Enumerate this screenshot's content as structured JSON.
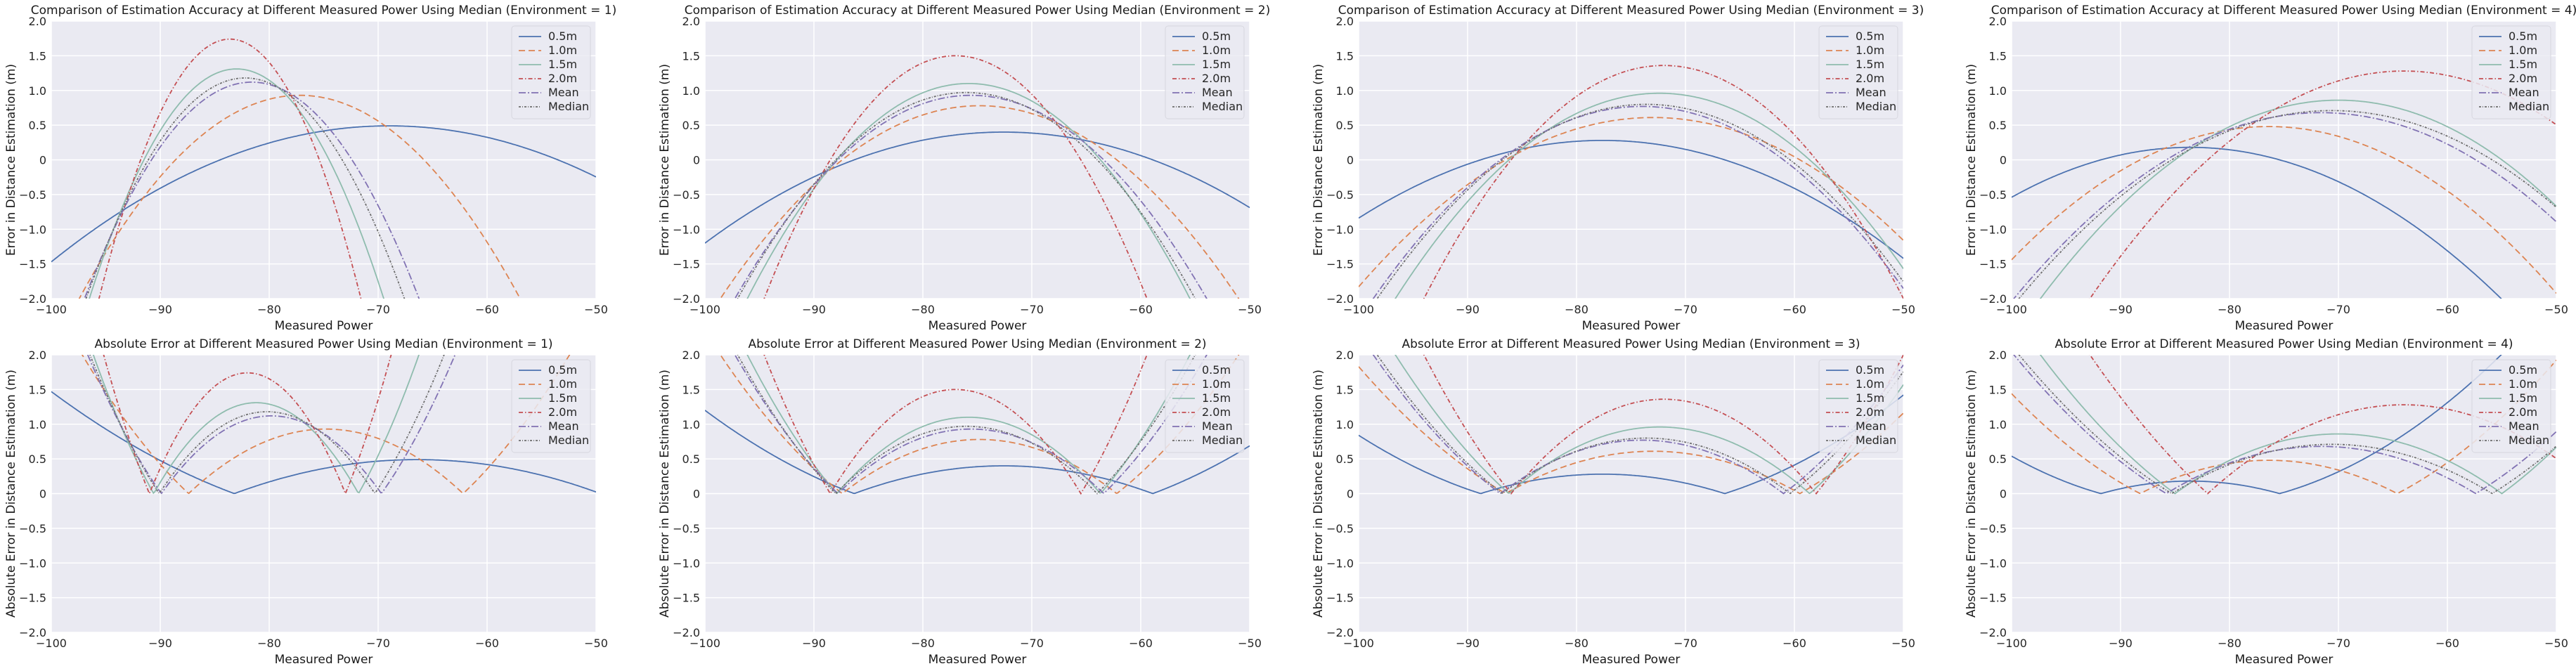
{
  "figure": {
    "series_styles": [
      {
        "name": "0.5m",
        "color": "#4c72b0",
        "dash": ""
      },
      {
        "name": "1.0m",
        "color": "#dd8452",
        "dash": "9,5"
      },
      {
        "name": "1.5m",
        "color": "#8fbcae",
        "dash": ""
      },
      {
        "name": "2.0m",
        "color": "#c44e52",
        "dash": "6,3,1.5,3"
      },
      {
        "name": "Mean",
        "color": "#8172b3",
        "dash": "10,3,2,3"
      },
      {
        "name": "Median",
        "color": "#6e6e6e",
        "dash": "3,2,1,2"
      }
    ]
  },
  "chart_data": [
    {
      "type": "line",
      "title": "Comparison of Estimation Accuracy at Different Measured Power Using Median (Environment = 1)",
      "xlabel": "Measured Power",
      "ylabel": "Error in Distance Estimation (m)",
      "xlim": [
        -100,
        -50
      ],
      "ylim": [
        -2,
        2
      ],
      "xticks": [
        "−100",
        "−90",
        "−80",
        "−70",
        "−60",
        "−50"
      ],
      "yticks": [
        "−2.0",
        "−1.5",
        "−1.0",
        "−0.5",
        "0",
        "0.5",
        "1.0",
        "1.5",
        "2.0"
      ],
      "grid": true,
      "legend": "top-right",
      "mode": "error",
      "series": [
        {
          "name": "0.5m",
          "x0": -84.5,
          "y_at_xmin": 0.49
        },
        {
          "name": "1.0m",
          "x0": -88.6,
          "y_at_xmin": 0.93
        },
        {
          "name": "1.5m",
          "x0": -91.5,
          "y_at_xmin": 1.31
        },
        {
          "name": "2.0m",
          "x0": -91.8,
          "y_at_xmin": 1.74
        },
        {
          "name": "Mean",
          "x0": -90.8,
          "y_at_xmin": 1.12
        },
        {
          "name": "Median",
          "x0": -91.1,
          "y_at_xmin": 1.18
        }
      ]
    },
    {
      "type": "line",
      "title": "Comparison of Estimation Accuracy at Different Measured Power Using Median (Environment = 2)",
      "xlabel": "Measured Power",
      "ylabel": "Error in Distance Estimation (m)",
      "xlim": [
        -100,
        -50
      ],
      "ylim": [
        -2,
        2
      ],
      "xticks": [
        "−100",
        "−90",
        "−80",
        "−70",
        "−60",
        "−50"
      ],
      "yticks": [
        "−2.0",
        "−1.5",
        "−1.0",
        "−0.5",
        "0",
        "0.5",
        "1.0",
        "1.5",
        "2.0"
      ],
      "grid": true,
      "legend": "top-right",
      "mode": "error",
      "series": [
        {
          "name": "0.5m",
          "x0": -86.3,
          "y_at_xmin": 0.4
        },
        {
          "name": "1.0m",
          "x0": -87.4,
          "y_at_xmin": 0.78
        },
        {
          "name": "1.5m",
          "x0": -87.9,
          "y_at_xmin": 1.1
        },
        {
          "name": "2.0m",
          "x0": -88.5,
          "y_at_xmin": 1.5
        },
        {
          "name": "Mean",
          "x0": -87.8,
          "y_at_xmin": 0.93
        },
        {
          "name": "Median",
          "x0": -88.0,
          "y_at_xmin": 0.97
        }
      ]
    },
    {
      "type": "line",
      "title": "Comparison of Estimation Accuracy at Different Measured Power Using Median (Environment = 3)",
      "xlabel": "Measured Power",
      "ylabel": "Error in Distance Estimation (m)",
      "xlim": [
        -100,
        -50
      ],
      "ylim": [
        -2,
        2
      ],
      "xticks": [
        "−100",
        "−90",
        "−80",
        "−70",
        "−60",
        "−50"
      ],
      "yticks": [
        "−2.0",
        "−1.5",
        "−1.0",
        "−0.5",
        "0",
        "0.5",
        "1.0",
        "1.5",
        "2.0"
      ],
      "grid": true,
      "legend": "top-right",
      "mode": "error",
      "series": [
        {
          "name": "0.5m",
          "x0": -88.8,
          "y_at_xmin": 0.28
        },
        {
          "name": "1.0m",
          "x0": -86.5,
          "y_at_xmin": 0.61
        },
        {
          "name": "1.5m",
          "x0": -86.2,
          "y_at_xmin": 0.96
        },
        {
          "name": "2.0m",
          "x0": -86.0,
          "y_at_xmin": 1.36
        },
        {
          "name": "Mean",
          "x0": -87.0,
          "y_at_xmin": 0.77
        },
        {
          "name": "Median",
          "x0": -86.8,
          "y_at_xmin": 0.8
        }
      ]
    },
    {
      "type": "line",
      "title": "Comparison of Estimation Accuracy at Different Measured Power Using Median (Environment = 4)",
      "xlabel": "Measured Power",
      "ylabel": "Error in Distance Estimation (m)",
      "xlim": [
        -100,
        -50
      ],
      "ylim": [
        -2,
        2
      ],
      "xticks": [
        "−100",
        "−90",
        "−80",
        "−70",
        "−60",
        "−50"
      ],
      "yticks": [
        "−2.0",
        "−1.5",
        "−1.0",
        "−0.5",
        "0",
        "0.5",
        "1.0",
        "1.5",
        "2.0"
      ],
      "grid": true,
      "legend": "top-right",
      "mode": "error",
      "series": [
        {
          "name": "0.5m",
          "x0": -91.8,
          "y_at_xmin": 0.18
        },
        {
          "name": "1.0m",
          "x0": -88.2,
          "y_at_xmin": 0.48
        },
        {
          "name": "1.5m",
          "x0": -85.0,
          "y_at_xmin": 0.86
        },
        {
          "name": "2.0m",
          "x0": -82.0,
          "y_at_xmin": 1.28
        },
        {
          "name": "Mean",
          "x0": -85.8,
          "y_at_xmin": 0.68
        },
        {
          "name": "Median",
          "x0": -85.3,
          "y_at_xmin": 0.71
        }
      ]
    },
    {
      "type": "line",
      "title": "Absolute Error at Different Measured Power Using Median (Environment = 1)",
      "xlabel": "Measured Power",
      "ylabel": "Absolute Error in Distance Estimation (m)",
      "xlim": [
        -100,
        -50
      ],
      "ylim": [
        -2,
        2
      ],
      "xticks": [
        "−100",
        "−90",
        "−80",
        "−70",
        "−60",
        "−50"
      ],
      "yticks": [
        "−2.0",
        "−1.5",
        "−1.0",
        "−0.5",
        "0",
        "0.5",
        "1.0",
        "1.5",
        "2.0"
      ],
      "grid": true,
      "legend": "top-right",
      "mode": "absolute",
      "series": [
        {
          "name": "0.5m",
          "x0": -83.2,
          "y_at_xmin": 0.49
        },
        {
          "name": "1.0m",
          "x0": -87.4,
          "y_at_xmin": 0.93
        },
        {
          "name": "1.5m",
          "x0": -90.6,
          "y_at_xmin": 1.31
        },
        {
          "name": "2.0m",
          "x0": -91.0,
          "y_at_xmin": 1.74
        },
        {
          "name": "Mean",
          "x0": -89.9,
          "y_at_xmin": 1.12
        },
        {
          "name": "Median",
          "x0": -90.1,
          "y_at_xmin": 1.18
        }
      ]
    },
    {
      "type": "line",
      "title": "Absolute Error at Different Measured Power Using Median (Environment = 2)",
      "xlabel": "Measured Power",
      "ylabel": "Absolute Error in Distance Estimation (m)",
      "xlim": [
        -100,
        -50
      ],
      "ylim": [
        -2,
        2
      ],
      "xticks": [
        "−100",
        "−90",
        "−80",
        "−70",
        "−60",
        "−50"
      ],
      "yticks": [
        "−2.0",
        "−1.5",
        "−1.0",
        "−0.5",
        "0",
        "0.5",
        "1.0",
        "1.5",
        "2.0"
      ],
      "grid": true,
      "legend": "top-right",
      "mode": "absolute",
      "series": [
        {
          "name": "0.5m",
          "x0": -86.3,
          "y_at_xmin": 0.4
        },
        {
          "name": "1.0m",
          "x0": -87.4,
          "y_at_xmin": 0.78
        },
        {
          "name": "1.5m",
          "x0": -87.9,
          "y_at_xmin": 1.1
        },
        {
          "name": "2.0m",
          "x0": -88.5,
          "y_at_xmin": 1.5
        },
        {
          "name": "Mean",
          "x0": -87.8,
          "y_at_xmin": 0.93
        },
        {
          "name": "Median",
          "x0": -88.0,
          "y_at_xmin": 0.97
        }
      ]
    },
    {
      "type": "line",
      "title": "Absolute Error at Different Measured Power Using Median (Environment = 3)",
      "xlabel": "Measured Power",
      "ylabel": "Absolute Error in Distance Estimation (m)",
      "xlim": [
        -100,
        -50
      ],
      "ylim": [
        -2,
        2
      ],
      "xticks": [
        "−100",
        "−90",
        "−80",
        "−70",
        "−60",
        "−50"
      ],
      "yticks": [
        "−2.0",
        "−1.5",
        "−1.0",
        "−0.5",
        "0",
        "0.5",
        "1.0",
        "1.5",
        "2.0"
      ],
      "grid": true,
      "legend": "top-right",
      "mode": "absolute",
      "series": [
        {
          "name": "0.5m",
          "x0": -88.8,
          "y_at_xmin": 0.28
        },
        {
          "name": "1.0m",
          "x0": -86.5,
          "y_at_xmin": 0.61
        },
        {
          "name": "1.5m",
          "x0": -86.2,
          "y_at_xmin": 0.96
        },
        {
          "name": "2.0m",
          "x0": -86.0,
          "y_at_xmin": 1.36
        },
        {
          "name": "Mean",
          "x0": -87.0,
          "y_at_xmin": 0.77
        },
        {
          "name": "Median",
          "x0": -86.8,
          "y_at_xmin": 0.8
        }
      ]
    },
    {
      "type": "line",
      "title": "Absolute Error at Different Measured Power Using Median (Environment = 4)",
      "xlabel": "Measured Power",
      "ylabel": "Absolute Error in Distance Estimation (m)",
      "xlim": [
        -100,
        -50
      ],
      "ylim": [
        -2,
        2
      ],
      "xticks": [
        "−100",
        "−90",
        "−80",
        "−70",
        "−60",
        "−50"
      ],
      "yticks": [
        "−2.0",
        "−1.5",
        "−1.0",
        "−0.5",
        "0",
        "0.5",
        "1.0",
        "1.5",
        "2.0"
      ],
      "grid": true,
      "legend": "top-right",
      "mode": "absolute",
      "series": [
        {
          "name": "0.5m",
          "x0": -91.8,
          "y_at_xmin": 0.18
        },
        {
          "name": "1.0m",
          "x0": -88.2,
          "y_at_xmin": 0.48
        },
        {
          "name": "1.5m",
          "x0": -85.0,
          "y_at_xmin": 0.86
        },
        {
          "name": "2.0m",
          "x0": -82.0,
          "y_at_xmin": 1.28
        },
        {
          "name": "Mean",
          "x0": -85.8,
          "y_at_xmin": 0.68
        },
        {
          "name": "Median",
          "x0": -85.3,
          "y_at_xmin": 0.71
        }
      ]
    }
  ]
}
